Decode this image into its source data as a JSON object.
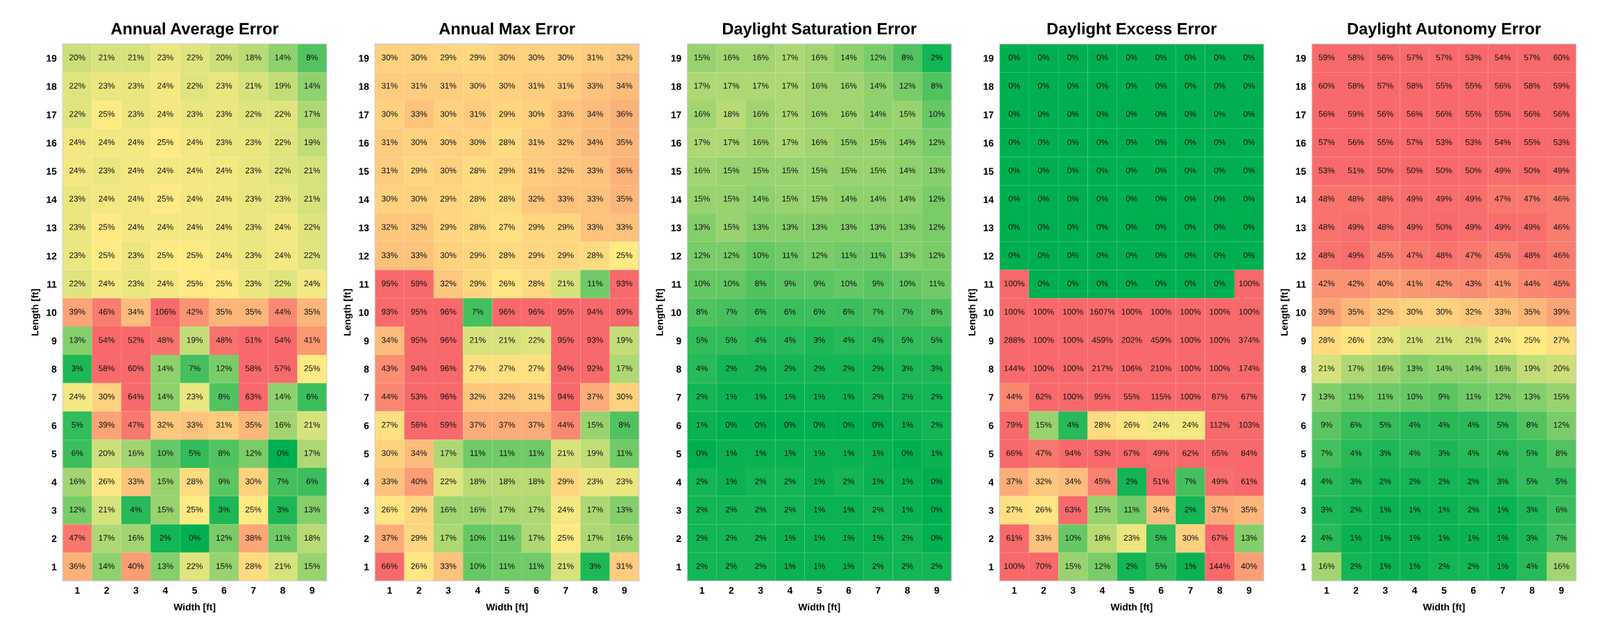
{
  "chart_data": [
    {
      "type": "heatmap",
      "title": "Annual Average Error",
      "xlabel": "Width [ft]",
      "ylabel": "Length [ft]",
      "categories": [
        "1",
        "2",
        "3",
        "4",
        "5",
        "6",
        "7",
        "8",
        "9"
      ],
      "y_categories": [
        "19",
        "18",
        "17",
        "16",
        "15",
        "14",
        "13",
        "12",
        "11",
        "10",
        "9",
        "8",
        "7",
        "6",
        "5",
        "4",
        "3",
        "2",
        "1"
      ],
      "cells": [
        [
          20,
          21,
          21,
          23,
          22,
          20,
          18,
          14,
          8
        ],
        [
          22,
          23,
          23,
          24,
          22,
          23,
          21,
          19,
          14
        ],
        [
          22,
          25,
          23,
          24,
          23,
          23,
          22,
          22,
          17
        ],
        [
          24,
          24,
          24,
          25,
          24,
          23,
          23,
          22,
          19
        ],
        [
          24,
          23,
          24,
          24,
          24,
          24,
          23,
          22,
          21
        ],
        [
          23,
          24,
          24,
          25,
          24,
          24,
          23,
          23,
          21
        ],
        [
          23,
          25,
          24,
          24,
          24,
          24,
          23,
          24,
          22
        ],
        [
          23,
          25,
          23,
          25,
          25,
          24,
          23,
          24,
          22
        ],
        [
          22,
          24,
          23,
          24,
          25,
          25,
          23,
          22,
          24
        ],
        [
          39,
          46,
          34,
          106,
          42,
          35,
          35,
          44,
          35
        ],
        [
          13,
          54,
          52,
          48,
          19,
          48,
          51,
          54,
          41
        ],
        [
          3,
          58,
          60,
          14,
          7,
          12,
          58,
          57,
          25
        ],
        [
          24,
          30,
          64,
          14,
          23,
          8,
          63,
          14,
          6
        ],
        [
          5,
          39,
          47,
          32,
          33,
          31,
          35,
          16,
          21
        ],
        [
          6,
          20,
          16,
          10,
          5,
          8,
          12,
          0,
          17
        ],
        [
          16,
          26,
          33,
          15,
          28,
          9,
          30,
          7,
          6
        ],
        [
          12,
          21,
          4,
          15,
          25,
          3,
          25,
          3,
          13
        ],
        [
          47,
          17,
          16,
          2,
          0,
          12,
          38,
          11,
          18
        ],
        [
          36,
          14,
          40,
          13,
          22,
          15,
          28,
          21,
          15
        ]
      ],
      "cell_labels": [
        [
          "20%",
          "21%",
          "21%",
          "23%",
          "22%",
          "20%",
          "18%",
          "14%",
          "8%"
        ],
        [
          "22%",
          "23%",
          "23%",
          "24%",
          "22%",
          "23%",
          "21%",
          "19%",
          "14%"
        ],
        [
          "22%",
          "25%",
          "23%",
          "24%",
          "23%",
          "23%",
          "22%",
          "22%",
          "17%"
        ],
        [
          "24%",
          "24%",
          "24%",
          "25%",
          "24%",
          "23%",
          "23%",
          "22%",
          "19%"
        ],
        [
          "24%",
          "23%",
          "24%",
          "24%",
          "24%",
          "24%",
          "23%",
          "22%",
          "21%"
        ],
        [
          "23%",
          "24%",
          "24%",
          "25%",
          "24%",
          "24%",
          "23%",
          "23%",
          "21%"
        ],
        [
          "23%",
          "25%",
          "24%",
          "24%",
          "24%",
          "24%",
          "23%",
          "24%",
          "22%"
        ],
        [
          "23%",
          "25%",
          "23%",
          "25%",
          "25%",
          "24%",
          "23%",
          "24%",
          "22%"
        ],
        [
          "22%",
          "24%",
          "23%",
          "24%",
          "25%",
          "25%",
          "23%",
          "22%",
          "24%"
        ],
        [
          "39%",
          "46%",
          "34%",
          "106%",
          "42%",
          "35%",
          "35%",
          "44%",
          "35%"
        ],
        [
          "13%",
          "54%",
          "52%",
          "48%",
          "19%",
          "48%",
          "51%",
          "54%",
          "41%"
        ],
        [
          "3%",
          "58%",
          "60%",
          "14%",
          "7%",
          "12%",
          "58%",
          "57%",
          "25%"
        ],
        [
          "24%",
          "30%",
          "64%",
          "14%",
          "23%",
          "8%",
          "63%",
          "14%",
          "6%"
        ],
        [
          "5%",
          "39%",
          "47%",
          "32%",
          "33%",
          "31%",
          "35%",
          "16%",
          "21%"
        ],
        [
          "6%",
          "20%",
          "16%",
          "10%",
          "5%",
          "8%",
          "12%",
          "0%",
          "17%"
        ],
        [
          "16%",
          "26%",
          "33%",
          "15%",
          "28%",
          "9%",
          "30%",
          "7%",
          "6%"
        ],
        [
          "12%",
          "21%",
          "4%",
          "15%",
          "25%",
          "3%",
          "25%",
          "3%",
          "13%"
        ],
        [
          "47%",
          "17%",
          "16%",
          "2%",
          "0%",
          "12%",
          "38%",
          "11%",
          "18%"
        ],
        [
          "36%",
          "14%",
          "40%",
          "13%",
          "22%",
          "15%",
          "28%",
          "21%",
          "15%"
        ]
      ]
    },
    {
      "type": "heatmap",
      "title": "Annual Max Error",
      "xlabel": "Width [ft]",
      "ylabel": "Length [ft]",
      "categories": [
        "1",
        "2",
        "3",
        "4",
        "5",
        "6",
        "7",
        "8",
        "9"
      ],
      "y_categories": [
        "19",
        "18",
        "17",
        "16",
        "15",
        "14",
        "13",
        "12",
        "11",
        "10",
        "9",
        "8",
        "7",
        "6",
        "5",
        "4",
        "3",
        "2",
        "1"
      ],
      "cells": [
        [
          30,
          30,
          29,
          29,
          30,
          30,
          30,
          31,
          32
        ],
        [
          31,
          31,
          31,
          30,
          30,
          31,
          31,
          33,
          34
        ],
        [
          30,
          33,
          30,
          31,
          29,
          30,
          33,
          34,
          36
        ],
        [
          31,
          30,
          30,
          30,
          28,
          31,
          32,
          34,
          35
        ],
        [
          31,
          29,
          30,
          28,
          29,
          31,
          32,
          33,
          36
        ],
        [
          30,
          30,
          29,
          28,
          28,
          32,
          33,
          33,
          35
        ],
        [
          32,
          32,
          29,
          28,
          27,
          29,
          29,
          33,
          33
        ],
        [
          33,
          33,
          30,
          29,
          28,
          29,
          29,
          28,
          25
        ],
        [
          95,
          59,
          32,
          29,
          26,
          28,
          21,
          11,
          93
        ],
        [
          93,
          95,
          96,
          7,
          96,
          96,
          95,
          94,
          89
        ],
        [
          34,
          95,
          96,
          21,
          21,
          22,
          95,
          93,
          19
        ],
        [
          43,
          94,
          96,
          27,
          27,
          27,
          94,
          92,
          17
        ],
        [
          44,
          53,
          96,
          32,
          32,
          31,
          94,
          37,
          30
        ],
        [
          27,
          56,
          59,
          37,
          37,
          37,
          44,
          15,
          8
        ],
        [
          30,
          34,
          17,
          11,
          11,
          11,
          21,
          19,
          11
        ],
        [
          33,
          40,
          22,
          18,
          18,
          18,
          29,
          23,
          23
        ],
        [
          26,
          29,
          16,
          16,
          17,
          17,
          24,
          17,
          13
        ],
        [
          37,
          29,
          17,
          10,
          11,
          17,
          25,
          17,
          16
        ],
        [
          66,
          26,
          33,
          10,
          11,
          11,
          21,
          3,
          31
        ]
      ],
      "cell_labels": [
        [
          "30%",
          "30%",
          "29%",
          "29%",
          "30%",
          "30%",
          "30%",
          "31%",
          "32%"
        ],
        [
          "31%",
          "31%",
          "31%",
          "30%",
          "30%",
          "31%",
          "31%",
          "33%",
          "34%"
        ],
        [
          "30%",
          "33%",
          "30%",
          "31%",
          "29%",
          "30%",
          "33%",
          "34%",
          "36%"
        ],
        [
          "31%",
          "30%",
          "30%",
          "30%",
          "28%",
          "31%",
          "32%",
          "34%",
          "35%"
        ],
        [
          "31%",
          "29%",
          "30%",
          "28%",
          "29%",
          "31%",
          "32%",
          "33%",
          "36%"
        ],
        [
          "30%",
          "30%",
          "29%",
          "28%",
          "28%",
          "32%",
          "33%",
          "33%",
          "35%"
        ],
        [
          "32%",
          "32%",
          "29%",
          "28%",
          "27%",
          "29%",
          "29%",
          "33%",
          "33%"
        ],
        [
          "33%",
          "33%",
          "30%",
          "29%",
          "28%",
          "29%",
          "29%",
          "28%",
          "25%"
        ],
        [
          "95%",
          "59%",
          "32%",
          "29%",
          "26%",
          "28%",
          "21%",
          "11%",
          "93%"
        ],
        [
          "93%",
          "95%",
          "96%",
          "7%",
          "96%",
          "96%",
          "95%",
          "94%",
          "89%"
        ],
        [
          "34%",
          "95%",
          "96%",
          "21%",
          "21%",
          "22%",
          "95%",
          "93%",
          "19%"
        ],
        [
          "43%",
          "94%",
          "96%",
          "27%",
          "27%",
          "27%",
          "94%",
          "92%",
          "17%"
        ],
        [
          "44%",
          "53%",
          "96%",
          "32%",
          "32%",
          "31%",
          "94%",
          "37%",
          "30%"
        ],
        [
          "27%",
          "56%",
          "59%",
          "37%",
          "37%",
          "37%",
          "44%",
          "15%",
          "8%"
        ],
        [
          "30%",
          "34%",
          "17%",
          "11%",
          "11%",
          "11%",
          "21%",
          "19%",
          "11%"
        ],
        [
          "33%",
          "40%",
          "22%",
          "18%",
          "18%",
          "18%",
          "29%",
          "23%",
          "23%"
        ],
        [
          "26%",
          "29%",
          "16%",
          "16%",
          "17%",
          "17%",
          "24%",
          "17%",
          "13%"
        ],
        [
          "37%",
          "29%",
          "17%",
          "10%",
          "11%",
          "17%",
          "25%",
          "17%",
          "16%"
        ],
        [
          "66%",
          "26%",
          "33%",
          "10%",
          "11%",
          "11%",
          "21%",
          "3%",
          "31%"
        ]
      ]
    },
    {
      "type": "heatmap",
      "title": "Daylight Saturation Error",
      "xlabel": "Width [ft]",
      "ylabel": "Length [ft]",
      "categories": [
        "1",
        "2",
        "3",
        "4",
        "5",
        "6",
        "7",
        "8",
        "9"
      ],
      "y_categories": [
        "19",
        "18",
        "17",
        "16",
        "15",
        "14",
        "13",
        "12",
        "11",
        "10",
        "9",
        "8",
        "7",
        "6",
        "5",
        "4",
        "3",
        "2",
        "1"
      ],
      "cells": [
        [
          15,
          16,
          16,
          17,
          16,
          14,
          12,
          8,
          2
        ],
        [
          17,
          17,
          17,
          17,
          16,
          16,
          14,
          12,
          8
        ],
        [
          16,
          18,
          16,
          17,
          16,
          16,
          14,
          15,
          10
        ],
        [
          17,
          17,
          16,
          17,
          16,
          15,
          15,
          14,
          12
        ],
        [
          16,
          15,
          15,
          15,
          15,
          15,
          15,
          14,
          13
        ],
        [
          15,
          15,
          14,
          15,
          15,
          14,
          14,
          14,
          12
        ],
        [
          13,
          15,
          13,
          13,
          13,
          13,
          13,
          13,
          12
        ],
        [
          12,
          12,
          10,
          11,
          12,
          11,
          11,
          13,
          12
        ],
        [
          10,
          10,
          8,
          9,
          9,
          10,
          9,
          10,
          11
        ],
        [
          8,
          7,
          6,
          6,
          6,
          6,
          7,
          7,
          8
        ],
        [
          5,
          5,
          4,
          4,
          3,
          4,
          4,
          5,
          5
        ],
        [
          4,
          2,
          2,
          2,
          2,
          2,
          2,
          3,
          3
        ],
        [
          2,
          1,
          1,
          1,
          1,
          1,
          2,
          2,
          2
        ],
        [
          1,
          0,
          0,
          0,
          0,
          0,
          0,
          1,
          2
        ],
        [
          0,
          1,
          1,
          1,
          1,
          1,
          1,
          0,
          1
        ],
        [
          2,
          1,
          2,
          2,
          1,
          2,
          1,
          1,
          0
        ],
        [
          2,
          2,
          2,
          2,
          1,
          1,
          2,
          1,
          0
        ],
        [
          2,
          2,
          2,
          1,
          1,
          1,
          1,
          2,
          0
        ],
        [
          2,
          2,
          2,
          1,
          1,
          1,
          2,
          2,
          2
        ]
      ],
      "cell_labels": [
        [
          "15%",
          "16%",
          "16%",
          "17%",
          "16%",
          "14%",
          "12%",
          "8%",
          "2%"
        ],
        [
          "17%",
          "17%",
          "17%",
          "17%",
          "16%",
          "16%",
          "14%",
          "12%",
          "8%"
        ],
        [
          "16%",
          "18%",
          "16%",
          "17%",
          "16%",
          "16%",
          "14%",
          "15%",
          "10%"
        ],
        [
          "17%",
          "17%",
          "16%",
          "17%",
          "16%",
          "15%",
          "15%",
          "14%",
          "12%"
        ],
        [
          "16%",
          "15%",
          "15%",
          "15%",
          "15%",
          "15%",
          "15%",
          "14%",
          "13%"
        ],
        [
          "15%",
          "15%",
          "14%",
          "15%",
          "15%",
          "14%",
          "14%",
          "14%",
          "12%"
        ],
        [
          "13%",
          "15%",
          "13%",
          "13%",
          "13%",
          "13%",
          "13%",
          "13%",
          "12%"
        ],
        [
          "12%",
          "12%",
          "10%",
          "11%",
          "12%",
          "11%",
          "11%",
          "13%",
          "12%"
        ],
        [
          "10%",
          "10%",
          "8%",
          "9%",
          "9%",
          "10%",
          "9%",
          "10%",
          "11%"
        ],
        [
          "8%",
          "7%",
          "6%",
          "6%",
          "6%",
          "6%",
          "7%",
          "7%",
          "8%"
        ],
        [
          "5%",
          "5%",
          "4%",
          "4%",
          "3%",
          "4%",
          "4%",
          "5%",
          "5%"
        ],
        [
          "4%",
          "2%",
          "2%",
          "2%",
          "2%",
          "2%",
          "2%",
          "3%",
          "3%"
        ],
        [
          "2%",
          "1%",
          "1%",
          "1%",
          "1%",
          "1%",
          "2%",
          "2%",
          "2%"
        ],
        [
          "1%",
          "0%",
          "0%",
          "0%",
          "0%",
          "0%",
          "0%",
          "1%",
          "2%"
        ],
        [
          "0%",
          "1%",
          "1%",
          "1%",
          "1%",
          "1%",
          "1%",
          "0%",
          "1%"
        ],
        [
          "2%",
          "1%",
          "2%",
          "2%",
          "1%",
          "2%",
          "1%",
          "1%",
          "0%"
        ],
        [
          "2%",
          "2%",
          "2%",
          "2%",
          "1%",
          "1%",
          "2%",
          "1%",
          "0%"
        ],
        [
          "2%",
          "2%",
          "2%",
          "1%",
          "1%",
          "1%",
          "1%",
          "2%",
          "0%"
        ],
        [
          "2%",
          "2%",
          "2%",
          "1%",
          "1%",
          "1%",
          "2%",
          "2%",
          "2%"
        ]
      ]
    },
    {
      "type": "heatmap",
      "title": "Daylight Excess Error",
      "xlabel": "Width [ft]",
      "ylabel": "Length [ft]",
      "categories": [
        "1",
        "2",
        "3",
        "4",
        "5",
        "6",
        "7",
        "8",
        "9"
      ],
      "y_categories": [
        "19",
        "18",
        "17",
        "16",
        "15",
        "14",
        "13",
        "12",
        "11",
        "10",
        "9",
        "8",
        "7",
        "6",
        "5",
        "4",
        "3",
        "2",
        "1"
      ],
      "cells": [
        [
          0,
          0,
          0,
          0,
          0,
          0,
          0,
          0,
          0
        ],
        [
          0,
          0,
          0,
          0,
          0,
          0,
          0,
          0,
          0
        ],
        [
          0,
          0,
          0,
          0,
          0,
          0,
          0,
          0,
          0
        ],
        [
          0,
          0,
          0,
          0,
          0,
          0,
          0,
          0,
          0
        ],
        [
          0,
          0,
          0,
          0,
          0,
          0,
          0,
          0,
          0
        ],
        [
          0,
          0,
          0,
          0,
          0,
          0,
          0,
          0,
          0
        ],
        [
          0,
          0,
          0,
          0,
          0,
          0,
          0,
          0,
          0
        ],
        [
          0,
          0,
          0,
          0,
          0,
          0,
          0,
          0,
          0
        ],
        [
          100,
          0,
          0,
          0,
          0,
          0,
          0,
          0,
          100
        ],
        [
          100,
          100,
          100,
          1607,
          100,
          100,
          100,
          100,
          100
        ],
        [
          288,
          100,
          100,
          459,
          202,
          459,
          100,
          100,
          374
        ],
        [
          144,
          100,
          100,
          217,
          106,
          210,
          100,
          100,
          174
        ],
        [
          44,
          62,
          100,
          95,
          55,
          115,
          100,
          87,
          67
        ],
        [
          79,
          15,
          4,
          28,
          26,
          24,
          24,
          112,
          103
        ],
        [
          66,
          47,
          94,
          53,
          67,
          49,
          62,
          65,
          84
        ],
        [
          37,
          32,
          34,
          45,
          2,
          51,
          7,
          49,
          61
        ],
        [
          27,
          26,
          63,
          15,
          11,
          34,
          2,
          37,
          35
        ],
        [
          61,
          33,
          10,
          18,
          23,
          5,
          30,
          67,
          13
        ],
        [
          100,
          70,
          15,
          12,
          2,
          5,
          1,
          144,
          40
        ]
      ],
      "cell_labels": [
        [
          "0%",
          "0%",
          "0%",
          "0%",
          "0%",
          "0%",
          "0%",
          "0%",
          "0%"
        ],
        [
          "0%",
          "0%",
          "0%",
          "0%",
          "0%",
          "0%",
          "0%",
          "0%",
          "0%"
        ],
        [
          "0%",
          "0%",
          "0%",
          "0%",
          "0%",
          "0%",
          "0%",
          "0%",
          "0%"
        ],
        [
          "0%",
          "0%",
          "0%",
          "0%",
          "0%",
          "0%",
          "0%",
          "0%",
          "0%"
        ],
        [
          "0%",
          "0%",
          "0%",
          "0%",
          "0%",
          "0%",
          "0%",
          "0%",
          "0%"
        ],
        [
          "0%",
          "0%",
          "0%",
          "0%",
          "0%",
          "0%",
          "0%",
          "0%",
          "0%"
        ],
        [
          "0%",
          "0%",
          "0%",
          "0%",
          "0%",
          "0%",
          "0%",
          "0%",
          "0%"
        ],
        [
          "0%",
          "0%",
          "0%",
          "0%",
          "0%",
          "0%",
          "0%",
          "0%",
          "0%"
        ],
        [
          "100%",
          "0%",
          "0%",
          "0%",
          "0%",
          "0%",
          "0%",
          "0%",
          "100%"
        ],
        [
          "100%",
          "100%",
          "100%",
          "1607%",
          "100%",
          "100%",
          "100%",
          "100%",
          "100%"
        ],
        [
          "288%",
          "100%",
          "100%",
          "459%",
          "202%",
          "459%",
          "100%",
          "100%",
          "374%"
        ],
        [
          "144%",
          "100%",
          "100%",
          "217%",
          "106%",
          "210%",
          "100%",
          "100%",
          "174%"
        ],
        [
          "44%",
          "62%",
          "100%",
          "95%",
          "55%",
          "115%",
          "100%",
          "87%",
          "67%"
        ],
        [
          "79%",
          "15%",
          "4%",
          "28%",
          "26%",
          "24%",
          "24%",
          "112%",
          "103%"
        ],
        [
          "66%",
          "47%",
          "94%",
          "53%",
          "67%",
          "49%",
          "62%",
          "65%",
          "84%"
        ],
        [
          "37%",
          "32%",
          "34%",
          "45%",
          "2%",
          "51%",
          "7%",
          "49%",
          "61%"
        ],
        [
          "27%",
          "26%",
          "63%",
          "15%",
          "11%",
          "34%",
          "2%",
          "37%",
          "35%"
        ],
        [
          "61%",
          "33%",
          "10%",
          "18%",
          "23%",
          "5%",
          "30%",
          "67%",
          "13%"
        ],
        [
          "100%",
          "70%",
          "15%",
          "12%",
          "2%",
          "5%",
          "1%",
          "144%",
          "40%"
        ]
      ]
    },
    {
      "type": "heatmap",
      "title": "Daylight Autonomy Error",
      "xlabel": "Width [ft]",
      "ylabel": "Length [ft]",
      "categories": [
        "1",
        "2",
        "3",
        "4",
        "5",
        "6",
        "7",
        "8",
        "9"
      ],
      "y_categories": [
        "19",
        "18",
        "17",
        "16",
        "15",
        "14",
        "13",
        "12",
        "11",
        "10",
        "9",
        "8",
        "7",
        "6",
        "5",
        "4",
        "3",
        "2",
        "1"
      ],
      "cells": [
        [
          59,
          58,
          56,
          57,
          57,
          53,
          54,
          57,
          60
        ],
        [
          60,
          58,
          57,
          58,
          55,
          55,
          56,
          58,
          59
        ],
        [
          56,
          59,
          56,
          56,
          56,
          55,
          55,
          56,
          56
        ],
        [
          57,
          56,
          55,
          57,
          53,
          53,
          54,
          55,
          53
        ],
        [
          53,
          51,
          50,
          50,
          50,
          50,
          49,
          50,
          49
        ],
        [
          48,
          48,
          48,
          49,
          49,
          49,
          47,
          47,
          46
        ],
        [
          48,
          49,
          48,
          49,
          50,
          49,
          49,
          49,
          46
        ],
        [
          48,
          49,
          45,
          47,
          48,
          47,
          45,
          48,
          46
        ],
        [
          42,
          42,
          40,
          41,
          42,
          43,
          41,
          44,
          45
        ],
        [
          39,
          35,
          32,
          30,
          30,
          32,
          33,
          35,
          39
        ],
        [
          28,
          26,
          23,
          21,
          21,
          21,
          24,
          25,
          27
        ],
        [
          21,
          17,
          16,
          13,
          14,
          14,
          16,
          19,
          20
        ],
        [
          13,
          11,
          11,
          10,
          9,
          11,
          12,
          13,
          15
        ],
        [
          9,
          6,
          5,
          4,
          4,
          4,
          5,
          8,
          12
        ],
        [
          7,
          4,
          3,
          4,
          3,
          4,
          4,
          5,
          8
        ],
        [
          4,
          3,
          2,
          2,
          2,
          2,
          3,
          5,
          5
        ],
        [
          3,
          2,
          1,
          1,
          1,
          2,
          1,
          3,
          6
        ],
        [
          4,
          1,
          1,
          1,
          1,
          1,
          1,
          3,
          7
        ],
        [
          16,
          2,
          1,
          1,
          2,
          2,
          1,
          4,
          16
        ]
      ],
      "cell_labels": [
        [
          "59%",
          "58%",
          "56%",
          "57%",
          "57%",
          "53%",
          "54%",
          "57%",
          "60%"
        ],
        [
          "60%",
          "58%",
          "57%",
          "58%",
          "55%",
          "55%",
          "56%",
          "58%",
          "59%"
        ],
        [
          "56%",
          "59%",
          "56%",
          "56%",
          "56%",
          "55%",
          "55%",
          "56%",
          "56%"
        ],
        [
          "57%",
          "56%",
          "55%",
          "57%",
          "53%",
          "53%",
          "54%",
          "55%",
          "53%"
        ],
        [
          "53%",
          "51%",
          "50%",
          "50%",
          "50%",
          "50%",
          "49%",
          "50%",
          "49%"
        ],
        [
          "48%",
          "48%",
          "48%",
          "49%",
          "49%",
          "49%",
          "47%",
          "47%",
          "46%"
        ],
        [
          "48%",
          "49%",
          "48%",
          "49%",
          "50%",
          "49%",
          "49%",
          "49%",
          "46%"
        ],
        [
          "48%",
          "49%",
          "45%",
          "47%",
          "48%",
          "47%",
          "45%",
          "48%",
          "46%"
        ],
        [
          "42%",
          "42%",
          "40%",
          "41%",
          "42%",
          "43%",
          "41%",
          "44%",
          "45%"
        ],
        [
          "39%",
          "35%",
          "32%",
          "30%",
          "30%",
          "32%",
          "33%",
          "35%",
          "39%"
        ],
        [
          "28%",
          "26%",
          "23%",
          "21%",
          "21%",
          "21%",
          "24%",
          "25%",
          "27%"
        ],
        [
          "21%",
          "17%",
          "16%",
          "13%",
          "14%",
          "14%",
          "16%",
          "19%",
          "20%"
        ],
        [
          "13%",
          "11%",
          "11%",
          "10%",
          "9%",
          "11%",
          "12%",
          "13%",
          "15%"
        ],
        [
          "9%",
          "6%",
          "5%",
          "4%",
          "4%",
          "4%",
          "5%",
          "8%",
          "12%"
        ],
        [
          "7%",
          "4%",
          "3%",
          "4%",
          "3%",
          "4%",
          "4%",
          "5%",
          "8%"
        ],
        [
          "4%",
          "3%",
          "2%",
          "2%",
          "2%",
          "2%",
          "3%",
          "5%",
          "5%"
        ],
        [
          "3%",
          "2%",
          "1%",
          "1%",
          "1%",
          "2%",
          "1%",
          "3%",
          "6%"
        ],
        [
          "4%",
          "1%",
          "1%",
          "1%",
          "1%",
          "1%",
          "1%",
          "3%",
          "7%"
        ],
        [
          "16%",
          "2%",
          "1%",
          "1%",
          "2%",
          "2%",
          "1%",
          "4%",
          "16%"
        ]
      ]
    }
  ]
}
